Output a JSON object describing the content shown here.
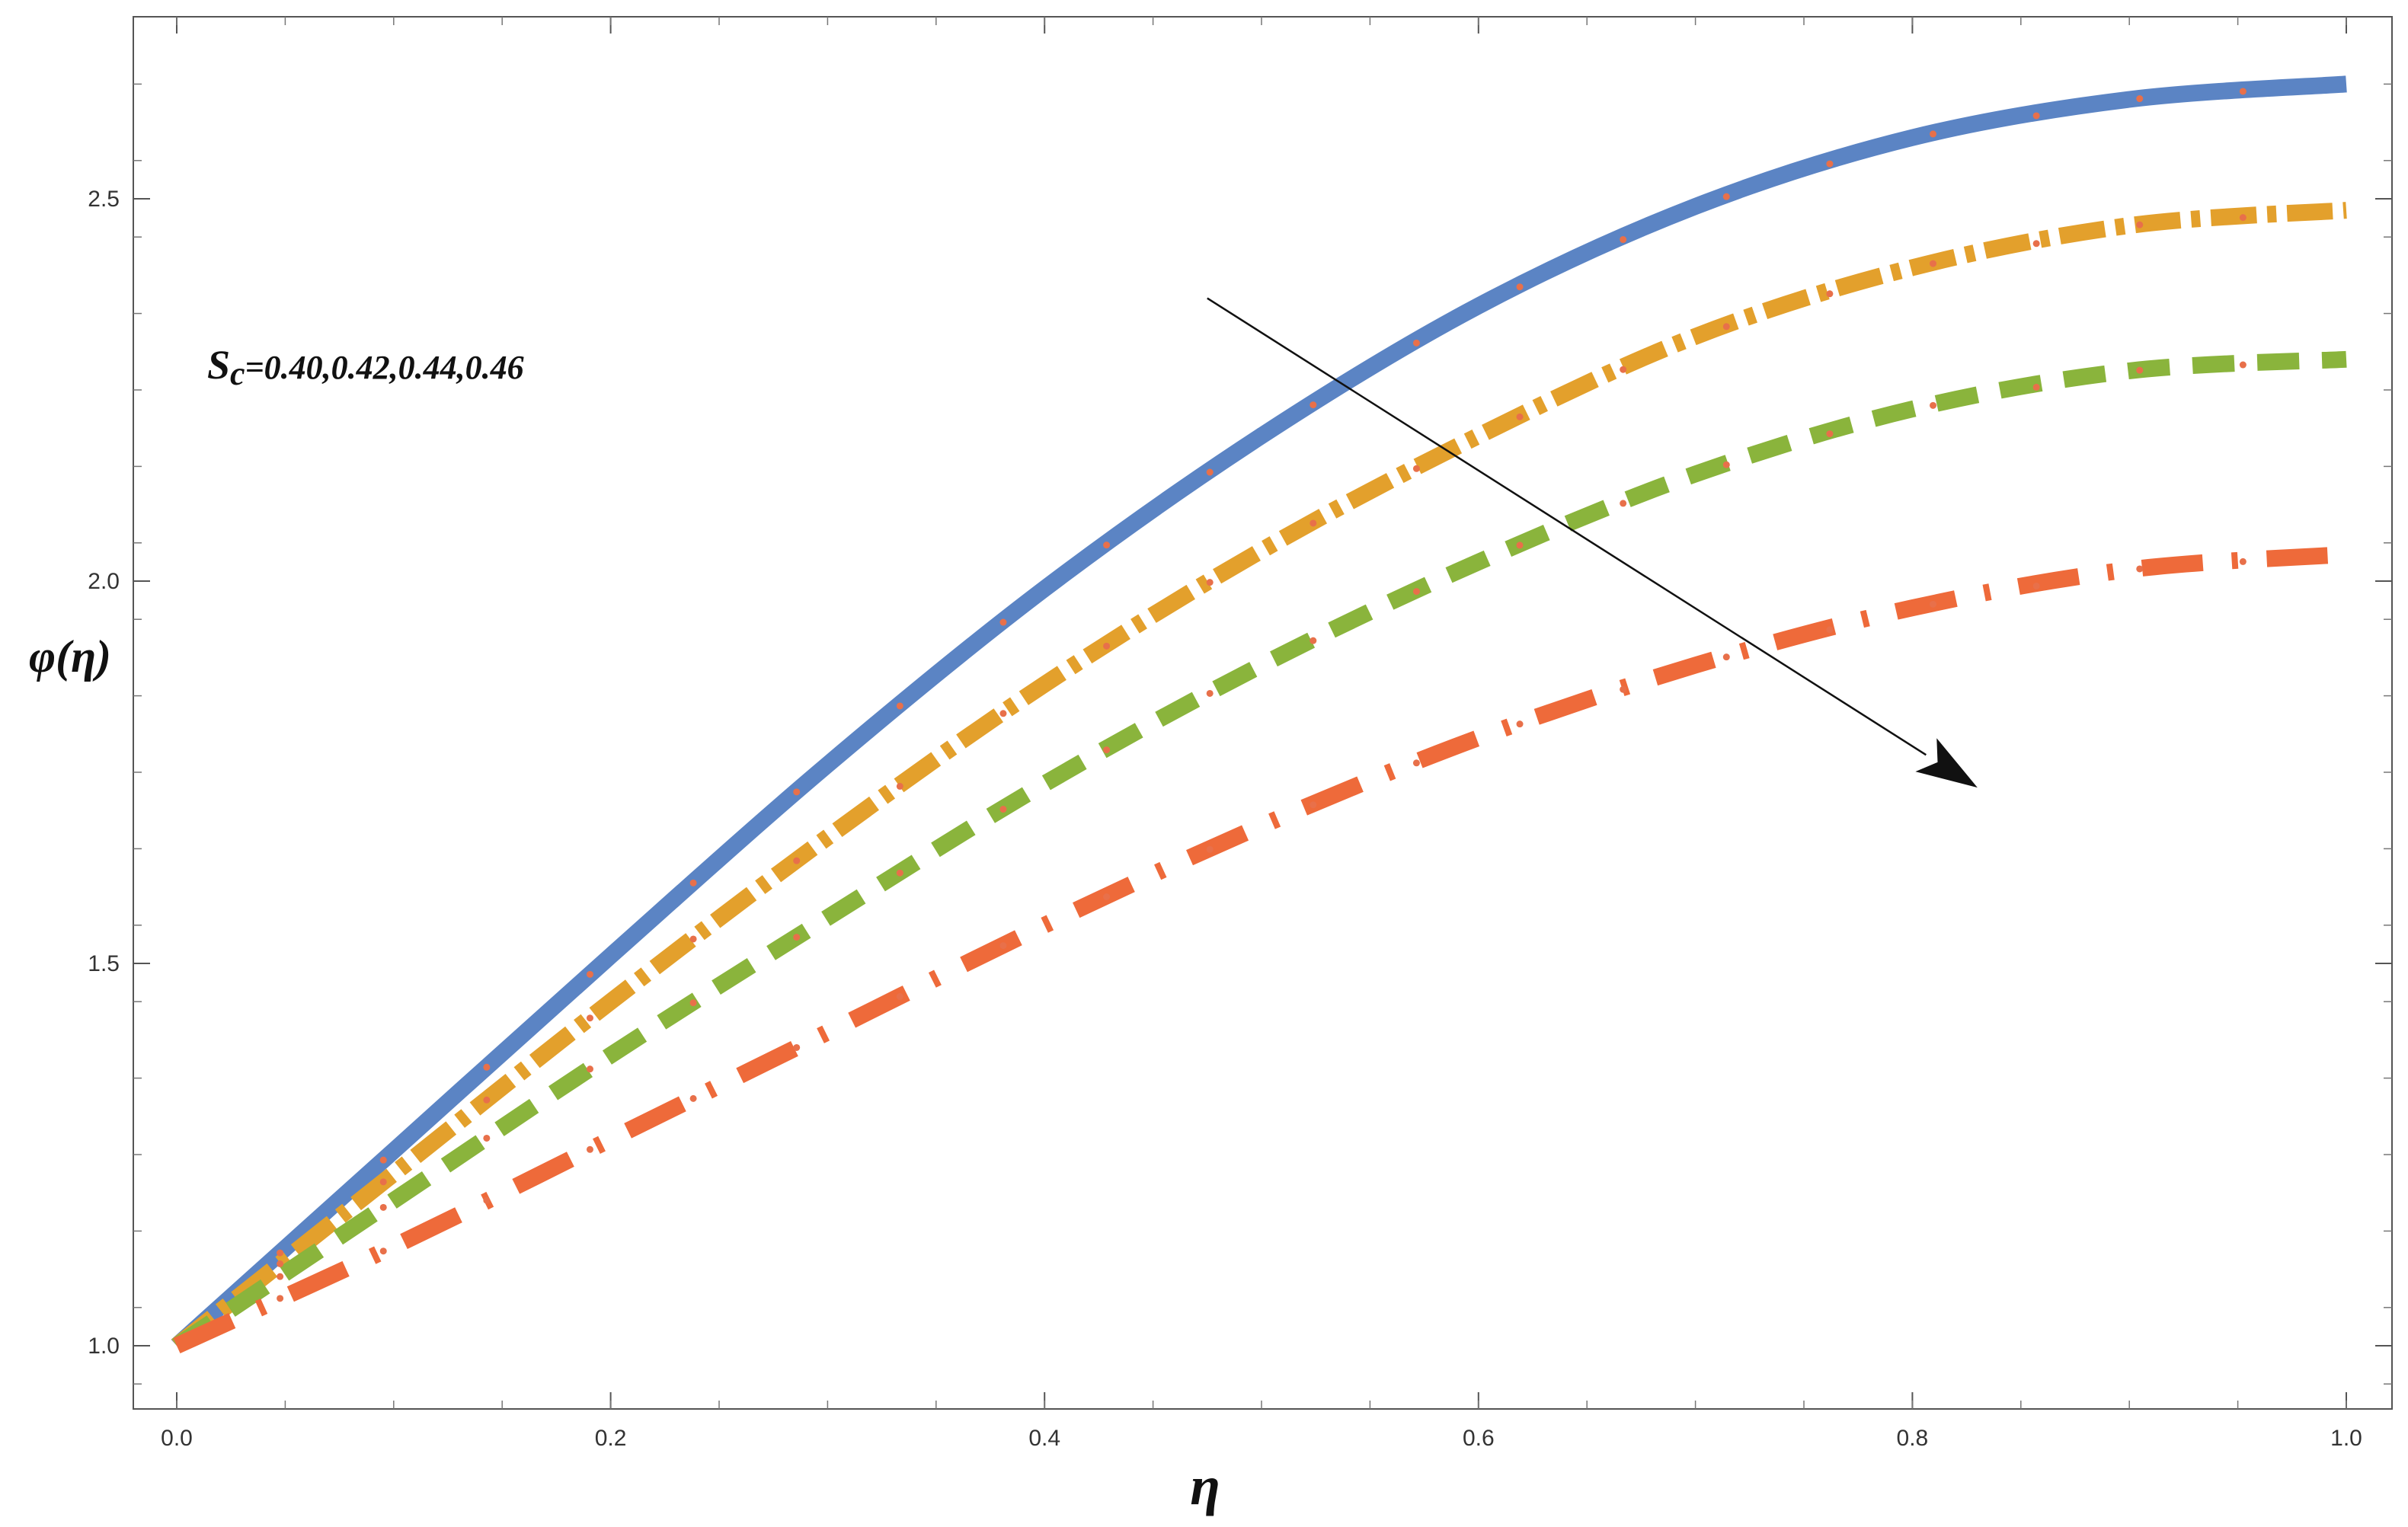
{
  "chart_data": {
    "type": "line",
    "title": "",
    "xlabel": "η",
    "ylabel": "φ(η)",
    "xlim": [
      -0.02,
      1.02
    ],
    "ylim": [
      0.93,
      2.75
    ],
    "grid": false,
    "x_ticks": [
      "0.0",
      "0.2",
      "0.4",
      "0.6",
      "0.8",
      "1.0"
    ],
    "y_ticks": [
      "1.0",
      "1.5",
      "2.0",
      "2.5"
    ],
    "annotation": {
      "symbol": "S",
      "subscript": "c",
      "values_text": "=0.40,0.42,0.44,0.46",
      "arrow_from": [
        0.475,
        2.37
      ],
      "arrow_to": [
        0.83,
        1.73
      ]
    },
    "marker_color": "#e8704a",
    "x": [
      0.0,
      0.1,
      0.2,
      0.3,
      0.4,
      0.5,
      0.6,
      0.7,
      0.8,
      0.9,
      1.0
    ],
    "series": [
      {
        "color": "#5b84c4",
        "style": "solid",
        "values": [
          1.0,
          1.255,
          1.51,
          1.76,
          1.99,
          2.19,
          2.36,
          2.49,
          2.58,
          2.63,
          2.65
        ]
      },
      {
        "color": "#e3a02c",
        "style": "dashdot",
        "values": [
          1.0,
          1.225,
          1.45,
          1.665,
          1.865,
          2.04,
          2.19,
          2.32,
          2.41,
          2.465,
          2.485
        ]
      },
      {
        "color": "#8ab43c",
        "style": "dashed",
        "values": [
          1.0,
          1.19,
          1.38,
          1.56,
          1.735,
          1.89,
          2.025,
          2.14,
          2.225,
          2.275,
          2.29
        ]
      },
      {
        "color": "#ee6a3a",
        "style": "longdash",
        "values": [
          1.0,
          1.13,
          1.27,
          1.41,
          1.55,
          1.68,
          1.795,
          1.89,
          1.965,
          2.015,
          2.035
        ]
      }
    ]
  }
}
